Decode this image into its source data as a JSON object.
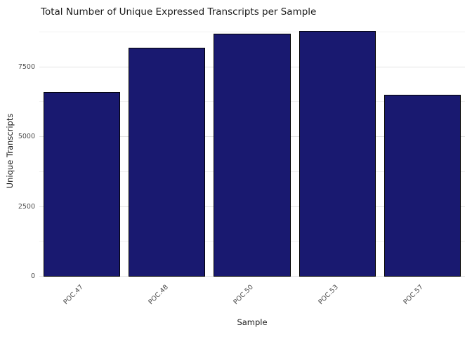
{
  "chart_data": {
    "type": "bar",
    "title": "Total Number of Unique Expressed Transcripts per Sample",
    "xlabel": "Sample",
    "ylabel": "Unique Transcripts",
    "categories": [
      "POC.47",
      "POC.48",
      "POC.50",
      "POC.53",
      "POC.57"
    ],
    "values": [
      6600,
      8200,
      8700,
      8790,
      6500
    ],
    "ylim": [
      0,
      9000
    ],
    "yticks": [
      0,
      2500,
      5000,
      7500
    ],
    "bar_color": "#191970",
    "bar_border": "#000000",
    "grid": true,
    "legend": false,
    "x_tick_angle": 45
  }
}
